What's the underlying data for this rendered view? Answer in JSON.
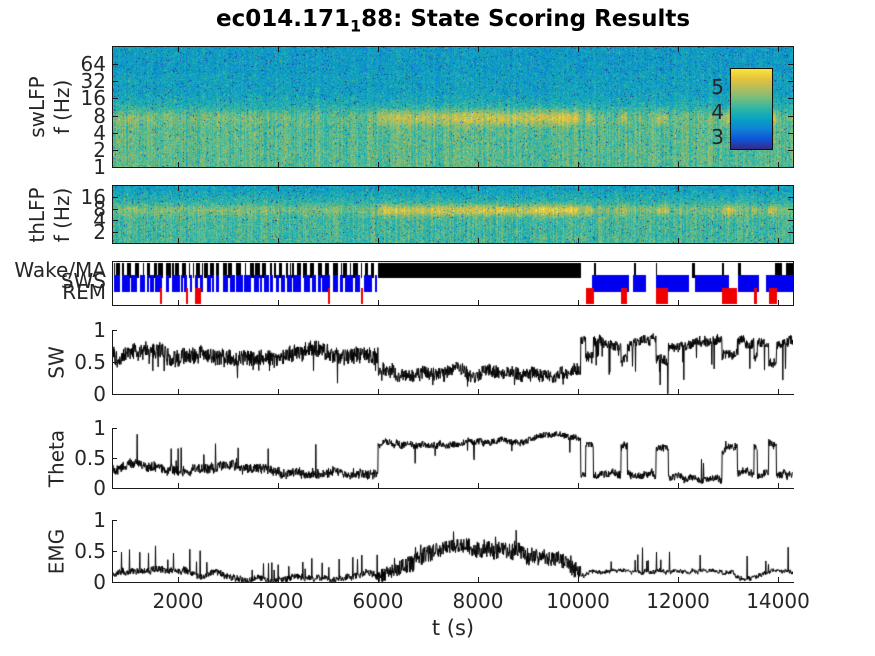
{
  "title_parts": {
    "prefix": "ec014.171",
    "subscript": "1",
    "suffix": "88: State Scoring Results"
  },
  "colors": {
    "background": "#FFFFFF",
    "axis_text": "#262626",
    "axis_line": "#1a1a1a",
    "trace": "#000000",
    "parula": [
      "#352A87",
      "#0D55D8",
      "#1082D3",
      "#08A2C3",
      "#2CB5A7",
      "#71BD80",
      "#B0BD5E",
      "#E5C23D",
      "#F8E53C"
    ]
  },
  "chart_data": {
    "type": "multi-panel-timeseries",
    "title": "ec014.171_188: State Scoring Results",
    "xlabel": "t (s)",
    "x_range": [
      700,
      14300
    ],
    "x_ticks": [
      2000,
      4000,
      6000,
      8000,
      10000,
      12000,
      14000
    ],
    "panels": {
      "swlfp": {
        "type": "spectrogram",
        "ylabel": [
          "swLFP",
          "f (Hz)"
        ],
        "yscale": "log",
        "f_range": [
          1,
          128
        ],
        "y_ticks": [
          64,
          32,
          16,
          8,
          4,
          2,
          1
        ],
        "colormap": "parula",
        "colorbar_ticks": [
          5,
          4,
          3
        ],
        "theta_band_hz": 7.5,
        "strong_theta_interval": [
          6000,
          10050
        ]
      },
      "thlfp": {
        "type": "spectrogram",
        "ylabel": [
          "thLFP",
          "f (Hz)"
        ],
        "yscale": "log",
        "f_range": [
          1,
          32
        ],
        "y_ticks": [
          16,
          8,
          4,
          2
        ],
        "colormap": "parula",
        "theta_band_hz": 7.5,
        "strong_theta_interval": [
          6000,
          10050
        ]
      },
      "states": {
        "type": "hypnogram",
        "rows": [
          {
            "label": "Wake/MA",
            "color": "#000000"
          },
          {
            "label": "SWS",
            "color": "#0000EE"
          },
          {
            "label": "REM",
            "color": "#EE0000"
          }
        ],
        "wake": {
          "barcode": [
            {
              "t": [
                700,
                6000
              ],
              "on": [
                1,
                5
              ],
              "off": [
                1,
                4
              ]
            }
          ],
          "sparse": [
            {
              "t": [
                10050,
                13930
              ],
              "on": [
                1,
                3
              ],
              "off": [
                10,
                45
              ]
            }
          ],
          "solid": [
            [
              6000,
              10050
            ],
            [
              13930,
              14060
            ],
            [
              14150,
              14300
            ]
          ]
        },
        "sws": {
          "barcode": [
            {
              "t": [
                700,
                6000
              ],
              "on": [
                2,
                8
              ],
              "off": [
                1,
                4
              ]
            },
            {
              "t": [
                10150,
                14300
              ],
              "on": [
                10,
                40
              ],
              "off": [
                3,
                10
              ]
            }
          ]
        },
        "rem": {
          "intervals": [
            [
              1640,
              1675
            ],
            [
              2150,
              2185
            ],
            [
              2330,
              2440
            ],
            [
              4990,
              5040
            ],
            [
              5660,
              5700
            ],
            [
              10150,
              10300
            ],
            [
              10860,
              10980
            ],
            [
              11560,
              11800
            ],
            [
              12880,
              13180
            ],
            [
              13520,
              13580
            ],
            [
              13810,
              13960
            ]
          ]
        }
      },
      "sw": {
        "type": "line",
        "ylabel": "SW",
        "y_ticks": [
          1,
          0.5,
          0
        ],
        "segments": [
          {
            "t": [
              700,
              6000
            ],
            "mean": 0.62,
            "noise": 0.13,
            "spike_prob": 0.05,
            "spike_amp": -0.32
          },
          {
            "t": [
              6000,
              10050
            ],
            "mean": 0.37,
            "noise": 0.1,
            "spike_prob": 0.04,
            "spike_amp": -0.22
          },
          {
            "t": [
              10050,
              14300
            ],
            "mean": 0.8,
            "noise": 0.08,
            "spike_prob": 0.07,
            "spike_amp": -0.55,
            "state_dips": true
          }
        ]
      },
      "theta": {
        "type": "line",
        "ylabel": "Theta",
        "y_ticks": [
          1,
          0.5,
          0
        ],
        "segments": [
          {
            "t": [
              700,
              6000
            ],
            "mean": 0.32,
            "noise": 0.08,
            "spike_prob": 0.05,
            "spike_amp": 0.45
          },
          {
            "t": [
              6000,
              10050
            ],
            "mean": 0.8,
            "noise": 0.05,
            "spike_prob": 0.03,
            "spike_amp": -0.3
          },
          {
            "t": [
              10050,
              14300
            ],
            "mean": 0.2,
            "noise": 0.06,
            "spike_prob": 0.02,
            "spike_amp": 0.35,
            "rem_boost": 0.48
          }
        ]
      },
      "emg": {
        "type": "line",
        "ylabel": "EMG",
        "y_ticks": [
          1,
          0.5,
          0
        ],
        "segments": [
          {
            "t": [
              700,
              6000
            ],
            "mean": 0.11,
            "noise": 0.05,
            "spike_prob": 0.06,
            "spike_amp": 0.38
          },
          {
            "t": [
              6000,
              10050
            ],
            "shape": "hump",
            "base": 0.13,
            "peak_add": 0.42,
            "noise": 0.13,
            "spike_prob": 0.05,
            "spike_amp": 0.25
          },
          {
            "t": [
              10050,
              14300
            ],
            "mean": 0.09,
            "noise": 0.03,
            "spike_prob": 0.035,
            "spike_amp": 0.42
          }
        ]
      }
    }
  }
}
